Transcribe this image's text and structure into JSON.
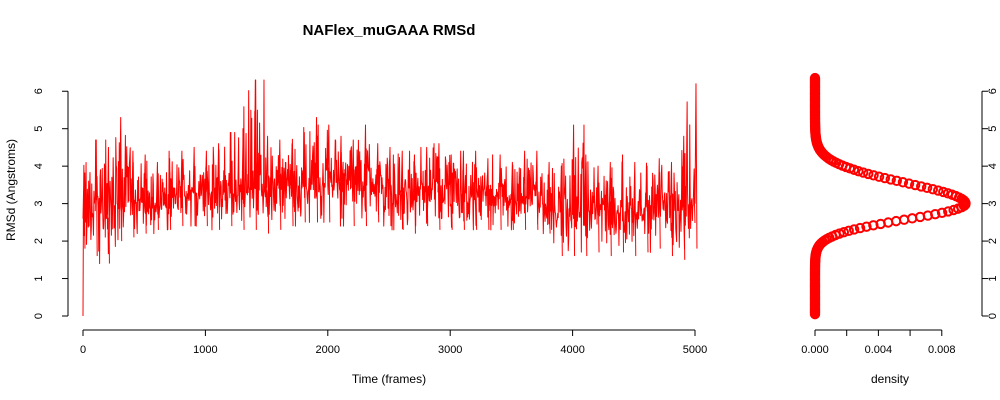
{
  "chart_data": [
    {
      "type": "line",
      "title": "NAFlex_muGAAA RMSd",
      "xlabel": "Time (frames)",
      "ylabel": "RMSd (Angstroms)",
      "xlim": [
        0,
        5000
      ],
      "ylim": [
        0,
        6.3
      ],
      "xticks": [
        0,
        1000,
        2000,
        3000,
        4000,
        5000
      ],
      "yticks": [
        0,
        1,
        2,
        3,
        4,
        5,
        6
      ],
      "grid": false,
      "color": "#ff0000",
      "series": [
        {
          "x": [
            0,
            100,
            200,
            300,
            400,
            500,
            600,
            700,
            800,
            900,
            1000,
            1100,
            1200,
            1300,
            1400,
            1500,
            1600,
            1700,
            1800,
            1900,
            2000,
            2100,
            2200,
            2300,
            2400,
            2500,
            2600,
            2700,
            2800,
            2900,
            3000,
            3100,
            3200,
            3300,
            3400,
            3500,
            3600,
            3700,
            3800,
            3900,
            4000,
            4100,
            4200,
            4300,
            4400,
            4500,
            4600,
            4700,
            4800,
            4900,
            5000
          ],
          "mean": [
            2.6,
            2.8,
            2.7,
            3.0,
            3.1,
            3.1,
            3.0,
            3.1,
            3.2,
            3.3,
            3.3,
            3.3,
            3.3,
            3.4,
            3.4,
            3.4,
            3.4,
            3.4,
            3.5,
            3.5,
            3.6,
            3.6,
            3.5,
            3.5,
            3.5,
            3.4,
            3.3,
            3.3,
            3.3,
            3.3,
            3.2,
            3.2,
            3.2,
            3.2,
            3.2,
            3.1,
            3.2,
            3.2,
            3.1,
            2.8,
            2.7,
            2.8,
            2.9,
            2.9,
            2.9,
            2.8,
            2.9,
            2.9,
            2.9,
            2.9,
            3.0
          ],
          "min": [
            1.8,
            1.6,
            1.4,
            2.0,
            2.1,
            2.2,
            2.3,
            2.3,
            2.4,
            2.4,
            2.4,
            2.3,
            2.4,
            2.3,
            2.3,
            2.2,
            2.3,
            2.4,
            2.5,
            2.5,
            2.5,
            2.6,
            2.4,
            2.4,
            2.5,
            2.4,
            2.3,
            2.2,
            2.4,
            2.3,
            2.3,
            2.3,
            2.3,
            2.3,
            2.3,
            2.3,
            2.3,
            2.3,
            2.2,
            1.6,
            1.6,
            1.6,
            1.7,
            1.6,
            1.7,
            1.6,
            1.7,
            1.8,
            1.6,
            1.5,
            1.8
          ],
          "max": [
            3.9,
            4.7,
            4.5,
            5.3,
            4.4,
            4.3,
            4.1,
            4.2,
            4.4,
            4.5,
            4.4,
            4.6,
            4.9,
            4.9,
            6.3,
            4.8,
            4.7,
            4.6,
            4.9,
            5.3,
            5.1,
            4.8,
            4.7,
            5.1,
            4.6,
            4.5,
            4.4,
            4.3,
            4.5,
            4.6,
            4.3,
            4.4,
            4.4,
            4.2,
            4.3,
            4.1,
            4.4,
            4.4,
            4.1,
            4.0,
            5.1,
            4.3,
            4.0,
            4.1,
            4.3,
            4.1,
            4.0,
            4.2,
            4.1,
            4.8,
            6.2
          ]
        }
      ]
    },
    {
      "type": "line",
      "xlabel": "density",
      "ylabel": "",
      "orientation": "horizontal-density",
      "xlim": [
        0,
        0.0095
      ],
      "ylim": [
        0,
        6.3
      ],
      "xticks": [
        "0.000",
        "0.004",
        "0.008"
      ],
      "xticks_minor": [
        0.002,
        0.006
      ],
      "yticks": [
        0,
        1,
        2,
        3,
        4,
        5,
        6
      ],
      "yaxis_side": "right",
      "color": "#ff0000",
      "density_peak": {
        "y": 3.0,
        "density": 0.0095
      },
      "density_spread_below": 0.42,
      "density_spread_above": 0.55
    }
  ]
}
